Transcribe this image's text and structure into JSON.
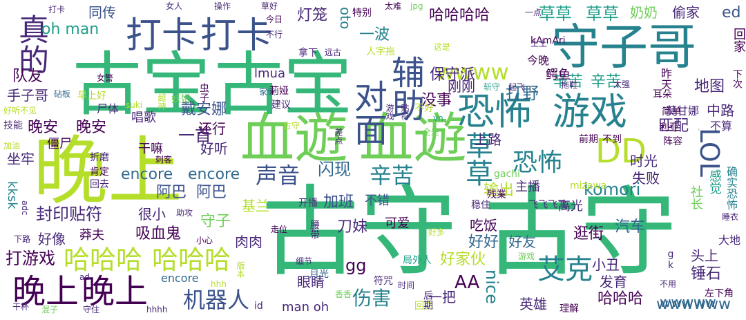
{
  "palette": {
    "purple": "#440154",
    "indigo": "#482878",
    "blue": "#3b528b",
    "steel": "#31688e",
    "teal": "#26828e",
    "aqua": "#1f9e89",
    "green": "#35b779",
    "lime": "#6ece58",
    "yellowgreen": "#b5de2b",
    "yellow": "#d8e219"
  },
  "words": [
    "古守",
    "古守",
    "血遊",
    "血遊",
    "古宝",
    "古宝",
    "晚上",
    "守子哥",
    "恐怖",
    "游戏",
    "打卡",
    "打卡",
    "对面",
    "辅助",
    "真的",
    "晚上",
    "晚上",
    "DD",
    "草草",
    "艾克",
    "LOL",
    "恐怖",
    "哈哈哈",
    "哈哈哈",
    "机器人",
    "声音",
    "辛苦",
    "闪现",
    "伤害",
    "wwww",
    "草草",
    "草草",
    "哈哈哈哈",
    "oh man",
    "同传",
    "灯笼",
    "奶奶",
    "偷家",
    "ed",
    "保守派",
    "一波",
    "oto",
    "辛苦",
    "辛苦",
    "打野",
    "地图",
    "中路",
    "匹配",
    "上路",
    "队友",
    "手子哥",
    "晚安",
    "晚安",
    "戴安娜",
    "一首",
    "还行",
    "好听",
    "干嘛",
    "encore",
    "encore",
    "阿巴",
    "阿巴",
    "LOL",
    "komori",
    "基兰",
    "输出",
    "主播",
    "封印贴符",
    "很小",
    "吸血鬼",
    "守子",
    "加班",
    "不错",
    "刀妹",
    "吃饭",
    "好像",
    "莽夫",
    "打游戏",
    "肉肉",
    "好好",
    "好友",
    "好家伙",
    "gg",
    "AA",
    "nice",
    "哈哈哈",
    "wwwwww",
    "锤石",
    "汽车",
    "逛街",
    "眼睛",
    "小丑",
    "发育",
    "头上",
    "英雄",
    "一把",
    "man oh",
    "encore",
    "kksk",
    "wwwww",
    "时光",
    "失败",
    "社长",
    "感觉",
    "确实恐怖",
    "高光",
    "可爱",
    "没事",
    "刚刚",
    "建议",
    "今晚",
    "鳄鱼",
    "下次",
    "回家",
    "昨天",
    "耳朵",
    "简单",
    "莫甘娜",
    "利亚",
    "阵容",
    "不算",
    "前期",
    "不到",
    "残業",
    "gachi",
    "mizawa",
    "尸体",
    "僵尸",
    "妖姬",
    "虫子",
    "唱歌",
    "坐牢",
    "技能",
    "加油",
    "好听不见",
    "砧板",
    "女警",
    "早上好",
    "suki",
    "超神",
    "折磨",
    "刺客",
    "肯定",
    "回去",
    "助攻",
    "开播",
    "走位",
    "腰带",
    "细节",
    "月光",
    "符咒",
    "时间",
    "回血",
    "后期",
    "理解",
    "不用",
    "左下角",
    "睡衣",
    "不行",
    "今日",
    "拿下",
    "远古",
    "特别",
    "太难",
    "jpg",
    "一点",
    "这是",
    "拖鞋",
    "土土",
    "斩守",
    "起飞",
    "太强",
    "贴符",
    "游戏",
    "家伙",
    "打卡",
    "女人",
    "操作",
    "草好",
    "人字拖",
    "差点",
    "全是",
    "稳住",
    "飞飞飞飞",
    "id",
    "干杯",
    "混子",
    "守住",
    "hhhh",
    "莉娅",
    "kAmAri",
    "vn",
    "ad",
    "hhh",
    "版本",
    "好多",
    "香香",
    "小心",
    "adc",
    "下路",
    "局外人",
    "游戏",
    "gk",
    "大地",
    "不好",
    "lmua",
    "古守",
    "听不见",
    "hmm"
  ]
}
